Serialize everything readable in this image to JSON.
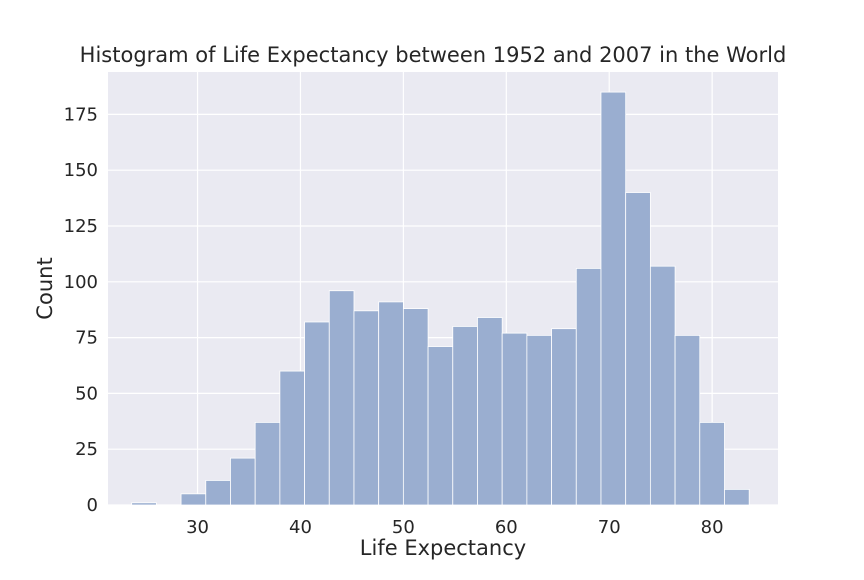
{
  "chart_data": {
    "type": "bar",
    "title": "Histogram of Life Expectancy between 1952 and 2007 in the World",
    "xlabel": "Life Expectancy",
    "ylabel": "Count",
    "xlim": [
      21.3,
      86.4
    ],
    "ylim": [
      0,
      194
    ],
    "x_ticks": [
      30,
      40,
      50,
      60,
      70,
      80
    ],
    "y_ticks": [
      0,
      25,
      50,
      75,
      100,
      125,
      150,
      175
    ],
    "grid": true,
    "bin_edges": [
      23.6,
      26.0,
      28.4,
      30.8,
      33.2,
      35.6,
      38.0,
      40.4,
      42.8,
      45.2,
      47.6,
      50.0,
      52.4,
      54.8,
      57.2,
      59.6,
      62.0,
      64.4,
      66.8,
      69.2,
      71.6,
      74.0,
      76.4,
      78.8,
      81.2,
      83.6
    ],
    "values": [
      1,
      0,
      5,
      11,
      21,
      37,
      60,
      82,
      96,
      87,
      91,
      88,
      71,
      80,
      84,
      77,
      76,
      79,
      106,
      185,
      140,
      107,
      76,
      37,
      7
    ],
    "colors": {
      "bar": "#9aaed0",
      "background": "#eaeaf2",
      "grid": "#ffffff"
    }
  }
}
